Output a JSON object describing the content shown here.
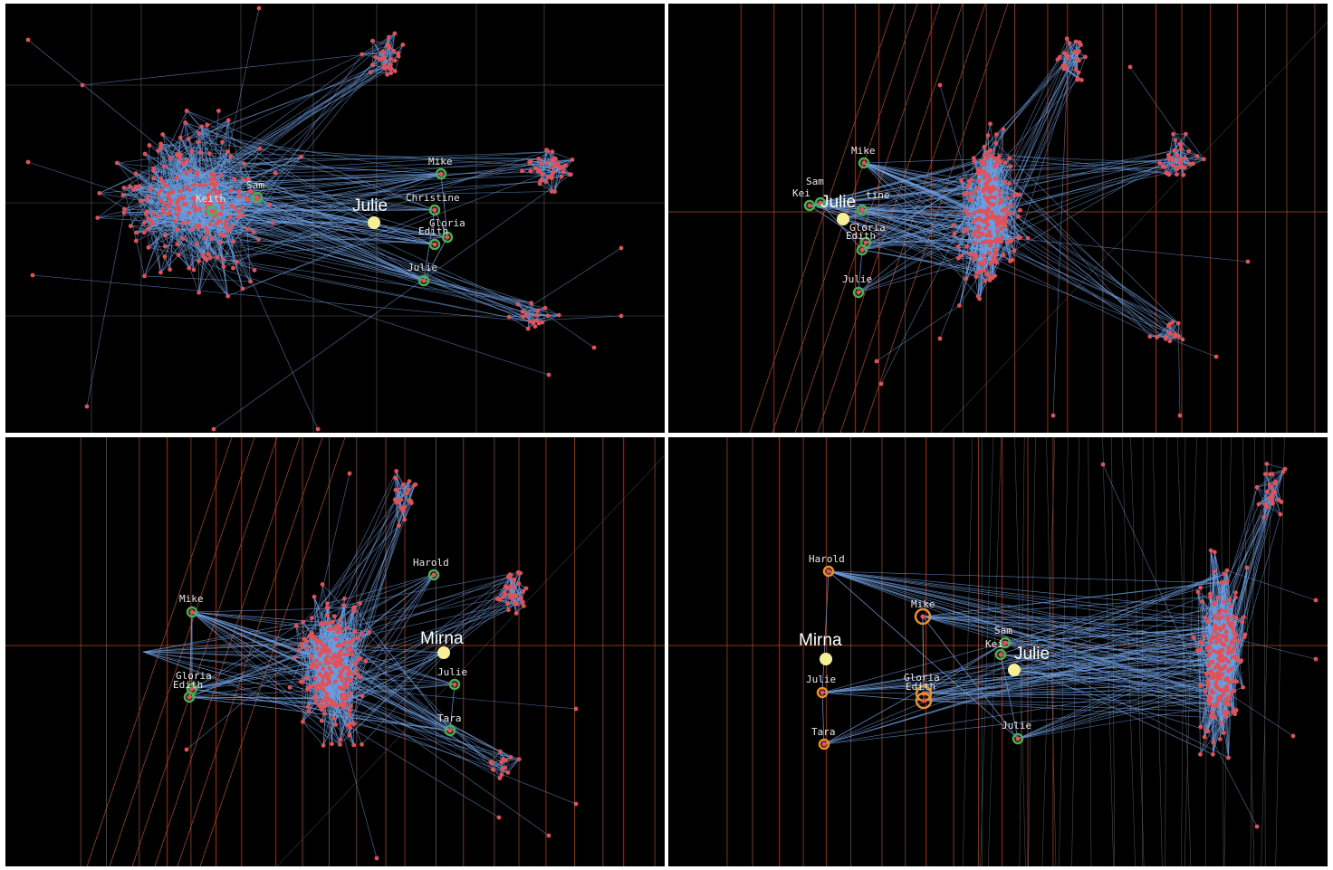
{
  "colors": {
    "background": "#000000",
    "edge": "#6f9fe0",
    "node": "#e0525a",
    "node_highlight": "#f7ef96",
    "ring_green": "#4caf50",
    "ring_orange": "#e8922c",
    "grid_orange": "#b24a22",
    "grid_gray": "#5a5a5a"
  },
  "panels": [
    {
      "name": "top-left",
      "focus_labels": [
        {
          "id": "julie_big",
          "text": "Julie"
        }
      ],
      "node_labels": [
        {
          "id": "keith",
          "text": "Keith"
        },
        {
          "id": "sam",
          "text": "Sam"
        },
        {
          "id": "mike",
          "text": "Mike"
        },
        {
          "id": "christine",
          "text": "Christine"
        },
        {
          "id": "gloria",
          "text": "Gloria"
        },
        {
          "id": "edith",
          "text": "Edith"
        },
        {
          "id": "julie",
          "text": "Julie"
        }
      ]
    },
    {
      "name": "top-right",
      "focus_labels": [
        {
          "id": "julie_big",
          "text": "Julie"
        }
      ],
      "node_labels": [
        {
          "id": "mike",
          "text": "Mike"
        },
        {
          "id": "sam",
          "text": "Sam"
        },
        {
          "id": "keith",
          "text": "Kei"
        },
        {
          "id": "christine",
          "text": "tine"
        },
        {
          "id": "gloria",
          "text": "Gloria"
        },
        {
          "id": "edith",
          "text": "Edith"
        },
        {
          "id": "julie",
          "text": "Julie"
        }
      ]
    },
    {
      "name": "bottom-left",
      "focus_labels": [
        {
          "id": "mirna_big",
          "text": "Mirna"
        }
      ],
      "node_labels": [
        {
          "id": "mike",
          "text": "Mike"
        },
        {
          "id": "harold",
          "text": "Harold"
        },
        {
          "id": "gloria",
          "text": "Gloria"
        },
        {
          "id": "edith",
          "text": "Edith"
        },
        {
          "id": "julie",
          "text": "Julie"
        },
        {
          "id": "tara",
          "text": "Tara"
        }
      ]
    },
    {
      "name": "bottom-right",
      "focus_labels": [
        {
          "id": "mirna_big",
          "text": "Mirna"
        },
        {
          "id": "julie_big",
          "text": "Julie"
        }
      ],
      "node_labels": [
        {
          "id": "harold",
          "text": "Harold"
        },
        {
          "id": "mike",
          "text": "Mike"
        },
        {
          "id": "julie_left",
          "text": "Julie"
        },
        {
          "id": "gloria",
          "text": "Gloria"
        },
        {
          "id": "edith",
          "text": "Edith"
        },
        {
          "id": "tara",
          "text": "Tara"
        },
        {
          "id": "sam",
          "text": "Sam"
        },
        {
          "id": "keith",
          "text": "Kei"
        },
        {
          "id": "julie_right",
          "text": "Julie"
        }
      ]
    }
  ]
}
